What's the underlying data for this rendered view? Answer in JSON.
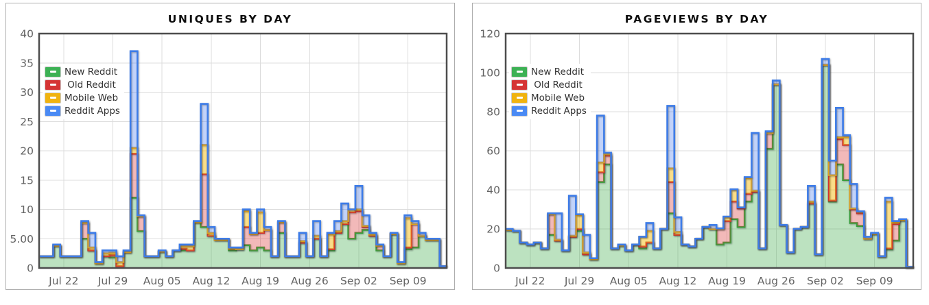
{
  "legend": {
    "items": [
      {
        "key": "new-reddit",
        "label": "New Reddit",
        "color": "#3cb154"
      },
      {
        "key": "old-reddit",
        "label": " Old Reddit",
        "color": "#d53434"
      },
      {
        "key": "mobile-web",
        "label": "Mobile Web",
        "color": "#f0b30f"
      },
      {
        "key": "reddit-apps",
        "label": "Reddit Apps",
        "color": "#4a8af4"
      }
    ],
    "position": "top-left"
  },
  "chart_data": [
    {
      "type": "area",
      "variant": "stacked-step",
      "title": "UNIQUES BY DAY",
      "xlabel": "",
      "ylabel": "",
      "ylim": [
        0,
        40
      ],
      "grid": true,
      "ytick_labels": [
        "0",
        "5.00",
        "10",
        "15",
        "20",
        "25",
        "30",
        "35",
        "40"
      ],
      "xticks": [
        {
          "index": 3,
          "label": "Jul 22"
        },
        {
          "index": 10,
          "label": "Jul 29"
        },
        {
          "index": 17,
          "label": "Aug 05"
        },
        {
          "index": 24,
          "label": "Aug 12"
        },
        {
          "index": 31,
          "label": "Aug 19"
        },
        {
          "index": 38,
          "label": "Aug 26"
        },
        {
          "index": 45,
          "label": "Sep 02"
        },
        {
          "index": 52,
          "label": "Sep 09"
        }
      ],
      "categories": [
        "Jul 19",
        "Jul 20",
        "Jul 21",
        "Jul 22",
        "Jul 23",
        "Jul 24",
        "Jul 25",
        "Jul 26",
        "Jul 27",
        "Jul 28",
        "Jul 29",
        "Jul 30",
        "Jul 31",
        "Aug 01",
        "Aug 02",
        "Aug 03",
        "Aug 04",
        "Aug 05",
        "Aug 06",
        "Aug 07",
        "Aug 08",
        "Aug 09",
        "Aug 10",
        "Aug 11",
        "Aug 12",
        "Aug 13",
        "Aug 14",
        "Aug 15",
        "Aug 16",
        "Aug 17",
        "Aug 18",
        "Aug 19",
        "Aug 20",
        "Aug 21",
        "Aug 22",
        "Aug 23",
        "Aug 24",
        "Aug 25",
        "Aug 26",
        "Aug 27",
        "Aug 28",
        "Aug 29",
        "Aug 30",
        "Aug 31",
        "Sep 01",
        "Sep 02",
        "Sep 03",
        "Sep 04",
        "Sep 05",
        "Sep 06",
        "Sep 07",
        "Sep 08",
        "Sep 09",
        "Sep 10",
        "Sep 11",
        "Sep 12",
        "Sep 13",
        "Sep 14"
      ],
      "series": [
        {
          "key": "new-reddit",
          "name": "New Reddit",
          "line": "#35a13c",
          "fill": "rgba(80,180,90,0.38)",
          "values": [
            2,
            2,
            3.8,
            2,
            2,
            2,
            5,
            3,
            0.8,
            2,
            1.8,
            0.3,
            2.7,
            12,
            6.3,
            2,
            2,
            2.8,
            2,
            3,
            3,
            3,
            7.8,
            7,
            5.5,
            4.8,
            4.8,
            3,
            3.2,
            3.9,
            3,
            3.5,
            3,
            2,
            6,
            2,
            2,
            4.3,
            2,
            5,
            2,
            3,
            6,
            7.5,
            5,
            6,
            6.5,
            5.5,
            3,
            2,
            5.8,
            0.8,
            3.2,
            3.5,
            5.5,
            4.8,
            4.8,
            0.3
          ]
        },
        {
          "key": "old-reddit",
          "name": "Old Reddit",
          "line": "#cf3232",
          "fill": "rgba(220,60,60,0.36)",
          "values": [
            0,
            0,
            0,
            0,
            0,
            0,
            2.7,
            0,
            0,
            0,
            0.4,
            0,
            0,
            7.5,
            2.5,
            0,
            0,
            0,
            0,
            0,
            0.3,
            0,
            0,
            9,
            0,
            0,
            0,
            0.3,
            0,
            3.1,
            2.8,
            2.5,
            3.5,
            0,
            1.8,
            0,
            0,
            0,
            0,
            0,
            0,
            0.2,
            0,
            0,
            4.5,
            3.7,
            0.5,
            0,
            0.8,
            0,
            0,
            0,
            0.3,
            4,
            0,
            0,
            0,
            0
          ]
        },
        {
          "key": "mobile-web",
          "name": "Mobile Web",
          "line": "#dfa21d",
          "fill": "rgba(245,190,20,0.5)",
          "values": [
            0,
            0,
            0,
            0,
            0,
            0,
            0,
            0.5,
            0,
            0.5,
            0.4,
            0.7,
            0,
            1,
            0,
            0,
            0,
            0,
            0,
            0,
            0.4,
            0.7,
            0,
            5,
            0.5,
            0,
            0,
            0,
            0,
            2.7,
            0,
            3.5,
            0,
            0,
            0,
            0,
            0,
            0.3,
            0,
            0.5,
            0,
            2.5,
            0.3,
            0.5,
            0.5,
            0.3,
            0.2,
            0.2,
            0,
            0,
            0,
            0,
            5,
            0,
            0,
            0,
            0,
            0
          ]
        },
        {
          "key": "reddit-apps",
          "name": "Reddit Apps",
          "line": "#3d7ce8",
          "fill": "rgba(80,130,240,0.35)",
          "values": [
            0,
            0,
            0.2,
            0,
            0,
            0,
            0.3,
            2.5,
            0.2,
            0.5,
            0.4,
            1,
            0.3,
            16.5,
            0.2,
            0,
            0,
            0.2,
            0,
            0,
            0.3,
            0.3,
            0.2,
            7,
            1,
            0.2,
            0.2,
            0.2,
            0.3,
            0.3,
            0.2,
            0.5,
            0.5,
            0,
            0.2,
            0,
            0,
            1.4,
            0,
            2.5,
            0,
            0.3,
            1.7,
            3,
            0,
            4,
            1.8,
            0.3,
            0.2,
            0,
            0.2,
            0.2,
            0.5,
            0.5,
            0.5,
            0.2,
            0.2,
            0
          ]
        }
      ]
    },
    {
      "type": "area",
      "variant": "stacked-step",
      "title": "PAGEVIEWS BY DAY",
      "xlabel": "",
      "ylabel": "",
      "ylim": [
        0,
        120
      ],
      "grid": true,
      "ytick_labels": [
        "0",
        "20",
        "40",
        "60",
        "80",
        "100",
        "120"
      ],
      "xticks": [
        {
          "index": 3,
          "label": "Jul 22"
        },
        {
          "index": 10,
          "label": "Jul 29"
        },
        {
          "index": 17,
          "label": "Aug 05"
        },
        {
          "index": 24,
          "label": "Aug 12"
        },
        {
          "index": 31,
          "label": "Aug 19"
        },
        {
          "index": 38,
          "label": "Aug 26"
        },
        {
          "index": 45,
          "label": "Sep 02"
        },
        {
          "index": 52,
          "label": "Sep 09"
        }
      ],
      "categories": [
        "Jul 19",
        "Jul 20",
        "Jul 21",
        "Jul 22",
        "Jul 23",
        "Jul 24",
        "Jul 25",
        "Jul 26",
        "Jul 27",
        "Jul 28",
        "Jul 29",
        "Jul 30",
        "Jul 31",
        "Aug 01",
        "Aug 02",
        "Aug 03",
        "Aug 04",
        "Aug 05",
        "Aug 06",
        "Aug 07",
        "Aug 08",
        "Aug 09",
        "Aug 10",
        "Aug 11",
        "Aug 12",
        "Aug 13",
        "Aug 14",
        "Aug 15",
        "Aug 16",
        "Aug 17",
        "Aug 18",
        "Aug 19",
        "Aug 20",
        "Aug 21",
        "Aug 22",
        "Aug 23",
        "Aug 24",
        "Aug 25",
        "Aug 26",
        "Aug 27",
        "Aug 28",
        "Aug 29",
        "Aug 30",
        "Aug 31",
        "Sep 01",
        "Sep 02",
        "Sep 03",
        "Sep 04",
        "Sep 05",
        "Sep 06",
        "Sep 07",
        "Sep 08",
        "Sep 09",
        "Sep 10",
        "Sep 11",
        "Sep 12",
        "Sep 13",
        "Sep 14"
      ],
      "series": [
        {
          "key": "new-reddit",
          "name": "New Reddit",
          "line": "#35a13c",
          "fill": "rgba(80,180,90,0.38)",
          "values": [
            19.5,
            19,
            13,
            12,
            13,
            10,
            17,
            14,
            9,
            16,
            19,
            7,
            4.5,
            44,
            53,
            10,
            11.5,
            9,
            12,
            10,
            13,
            10,
            20,
            28,
            17,
            12,
            11,
            15,
            21,
            20,
            12,
            13,
            25,
            21,
            34,
            39,
            10,
            61,
            94,
            22,
            8,
            20,
            21,
            33,
            7,
            104,
            34,
            53,
            45,
            23,
            21.5,
            15,
            17.5,
            6,
            9.5,
            14,
            24.5,
            0.5
          ]
        },
        {
          "key": "old-reddit",
          "name": "Old Reddit",
          "line": "#cf3232",
          "fill": "rgba(220,60,60,0.36)",
          "values": [
            0,
            0,
            0,
            0,
            0,
            0,
            10.5,
            0,
            0,
            0,
            1,
            0,
            0,
            5,
            4.5,
            0,
            0,
            0,
            0,
            1,
            0,
            0,
            0,
            16,
            0,
            0,
            0,
            0,
            0,
            0,
            8,
            11,
            9,
            9.5,
            4,
            0,
            0,
            8,
            0,
            0,
            0,
            0,
            0,
            0,
            0,
            0,
            0.5,
            13,
            18,
            7,
            6.5,
            0,
            0,
            0,
            0.5,
            8.5,
            0,
            0
          ]
        },
        {
          "key": "mobile-web",
          "name": "Mobile Web",
          "line": "#dfa21d",
          "fill": "rgba(245,190,20,0.5)",
          "values": [
            0,
            0,
            0,
            0,
            0,
            0,
            0,
            0.5,
            0,
            0.5,
            7,
            1,
            0,
            5,
            1,
            0,
            0,
            0,
            0,
            5,
            6,
            0,
            0,
            7,
            1.5,
            0,
            0,
            0,
            0,
            0,
            0,
            2,
            6,
            0.5,
            8,
            0.6,
            0,
            0,
            0,
            0,
            0,
            0,
            0,
            1,
            0,
            0,
            13,
            1,
            4,
            0.5,
            1,
            0,
            0,
            0,
            24,
            1,
            0,
            0
          ]
        },
        {
          "key": "reddit-apps",
          "name": "Reddit Apps",
          "line": "#3d7ce8",
          "fill": "rgba(80,130,240,0.35)",
          "values": [
            0.5,
            0,
            0,
            0,
            0,
            0,
            0.5,
            13.5,
            0,
            20.5,
            0.5,
            9,
            0.5,
            24,
            0.5,
            0,
            0.5,
            0,
            0,
            0,
            4,
            0,
            0,
            32,
            7.5,
            0,
            0,
            0,
            0,
            2,
            0.3,
            0.3,
            0.3,
            0,
            0.5,
            29.5,
            0,
            1,
            2,
            0,
            0,
            0,
            0,
            8,
            0,
            3,
            7.5,
            15,
            1,
            12.5,
            0,
            1,
            0.5,
            0,
            2,
            0.5,
            0.5,
            0
          ]
        }
      ]
    }
  ]
}
